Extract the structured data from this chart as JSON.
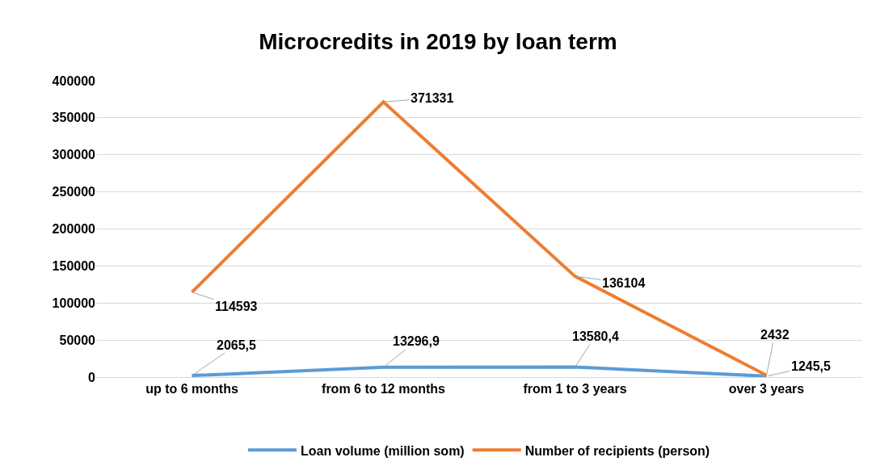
{
  "chart_data": {
    "type": "line",
    "title": "Microcredits in 2019 by loan term",
    "categories": [
      "up to 6 months",
      "from 6 to 12 months",
      "from 1 to 3 years",
      "over 3 years"
    ],
    "series": [
      {
        "name": "Loan volume (million som)",
        "color": "#5b9bd5",
        "values": [
          2065.5,
          13296.9,
          13580.4,
          1245.5
        ],
        "value_labels": [
          "2065,5",
          "13296,9",
          "13580,4",
          "1245,5"
        ]
      },
      {
        "name": "Number of recipients (person)",
        "color": "#ed7d31",
        "values": [
          114593,
          371331,
          136104,
          2432
        ],
        "value_labels": [
          "114593",
          "371331",
          "136104",
          "2432"
        ]
      }
    ],
    "ylim": [
      0,
      400000
    ],
    "yticks": [
      0,
      50000,
      100000,
      150000,
      200000,
      250000,
      300000,
      350000,
      400000
    ],
    "grid": "y",
    "legend": "bottom",
    "marker": "none",
    "line_style": "solid"
  }
}
